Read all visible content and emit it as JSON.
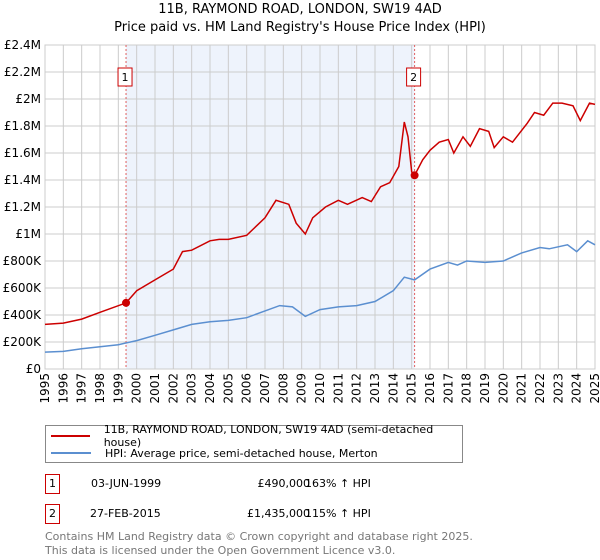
{
  "title_line1": "11B, RAYMOND ROAD, LONDON, SW19 4AD",
  "title_line2": "Price paid vs. HM Land Registry's House Price Index (HPI)",
  "colors": {
    "property": "#cc0000",
    "hpi": "#5b8fd0",
    "shade": "#eef3fc",
    "grid": "#cccccc"
  },
  "chart_data": {
    "type": "line",
    "title": "Price paid vs. HM Land Registry's House Price Index (HPI)",
    "xlim": [
      1995,
      2025
    ],
    "ylim": [
      0,
      2400000
    ],
    "x_ticks": [
      "1995",
      "1996",
      "1997",
      "1998",
      "1999",
      "2000",
      "2001",
      "2002",
      "2003",
      "2004",
      "2005",
      "2006",
      "2007",
      "2008",
      "2009",
      "2010",
      "2011",
      "2012",
      "2013",
      "2014",
      "2015",
      "2016",
      "2017",
      "2018",
      "2019",
      "2020",
      "2021",
      "2022",
      "2023",
      "2024",
      "2025"
    ],
    "y_ticks": [
      {
        "v": 0,
        "label": "£0"
      },
      {
        "v": 200000,
        "label": "£200K"
      },
      {
        "v": 400000,
        "label": "£400K"
      },
      {
        "v": 600000,
        "label": "£600K"
      },
      {
        "v": 800000,
        "label": "£800K"
      },
      {
        "v": 1000000,
        "label": "£1M"
      },
      {
        "v": 1200000,
        "label": "£1.2M"
      },
      {
        "v": 1400000,
        "label": "£1.4M"
      },
      {
        "v": 1600000,
        "label": "£1.6M"
      },
      {
        "v": 1800000,
        "label": "£1.8M"
      },
      {
        "v": 2000000,
        "label": "£2M"
      },
      {
        "v": 2200000,
        "label": "£2.2M"
      },
      {
        "v": 2400000,
        "label": "£2.4M"
      }
    ],
    "shaded_range": [
      1999.42,
      2015.16
    ],
    "series": [
      {
        "name": "11B, RAYMOND ROAD, LONDON, SW19 4AD (semi-detached house)",
        "x": [
          1995,
          1996,
          1997,
          1998,
          1999.42,
          2000,
          2001,
          2002,
          2002.5,
          2003,
          2004,
          2004.5,
          2005,
          2006,
          2007,
          2007.6,
          2008.3,
          2008.7,
          2009.2,
          2009.6,
          2010.3,
          2011,
          2011.5,
          2012.3,
          2012.8,
          2013.3,
          2013.8,
          2014.3,
          2014.6,
          2014.8,
          2015.0,
          2015.16,
          2015.6,
          2016,
          2016.5,
          2017,
          2017.3,
          2017.8,
          2018.2,
          2018.7,
          2019.2,
          2019.5,
          2020,
          2020.5,
          2021.3,
          2021.7,
          2022.2,
          2022.7,
          2023.2,
          2023.8,
          2024.2,
          2024.7,
          2025
        ],
        "values": [
          330000,
          340000,
          370000,
          420000,
          490000,
          580000,
          660000,
          740000,
          870000,
          880000,
          950000,
          960000,
          960000,
          990000,
          1120000,
          1250000,
          1220000,
          1080000,
          1000000,
          1120000,
          1200000,
          1250000,
          1220000,
          1270000,
          1240000,
          1350000,
          1380000,
          1500000,
          1830000,
          1720000,
          1460000,
          1435000,
          1550000,
          1620000,
          1680000,
          1700000,
          1600000,
          1720000,
          1650000,
          1780000,
          1760000,
          1640000,
          1720000,
          1680000,
          1820000,
          1900000,
          1880000,
          1970000,
          1970000,
          1950000,
          1840000,
          1970000,
          1960000
        ]
      },
      {
        "name": "HPI: Average price, semi-detached house, Merton",
        "x": [
          1995,
          1996,
          1997,
          1998,
          1999,
          2000,
          2001,
          2002,
          2003,
          2004,
          2005,
          2006,
          2007,
          2007.8,
          2008.5,
          2009.2,
          2010,
          2011,
          2012,
          2013,
          2014,
          2014.6,
          2015.16,
          2016,
          2017,
          2017.5,
          2018,
          2019,
          2020,
          2021,
          2022,
          2022.5,
          2023.5,
          2024,
          2024.6,
          2025
        ],
        "values": [
          125000,
          130000,
          150000,
          165000,
          180000,
          210000,
          250000,
          290000,
          330000,
          350000,
          360000,
          380000,
          430000,
          470000,
          460000,
          390000,
          440000,
          460000,
          470000,
          500000,
          580000,
          680000,
          660000,
          740000,
          790000,
          770000,
          800000,
          790000,
          800000,
          860000,
          900000,
          890000,
          920000,
          870000,
          950000,
          920000
        ]
      }
    ],
    "sales": [
      {
        "label": "1",
        "x": 1999.42,
        "value": 490000
      },
      {
        "label": "2",
        "x": 2015.16,
        "value": 1435000
      }
    ]
  },
  "legend": {
    "property": "11B, RAYMOND ROAD, LONDON, SW19 4AD (semi-detached house)",
    "hpi": "HPI: Average price, semi-detached house, Merton"
  },
  "transactions": [
    {
      "num": "1",
      "date": "03-JUN-1999",
      "price": "£490,000",
      "hpi": "163% ↑ HPI"
    },
    {
      "num": "2",
      "date": "27-FEB-2015",
      "price": "£1,435,000",
      "hpi": "115% ↑ HPI"
    }
  ],
  "footer": {
    "line1": "Contains HM Land Registry data © Crown copyright and database right 2025.",
    "line2": "This data is licensed under the Open Government Licence v3.0."
  }
}
